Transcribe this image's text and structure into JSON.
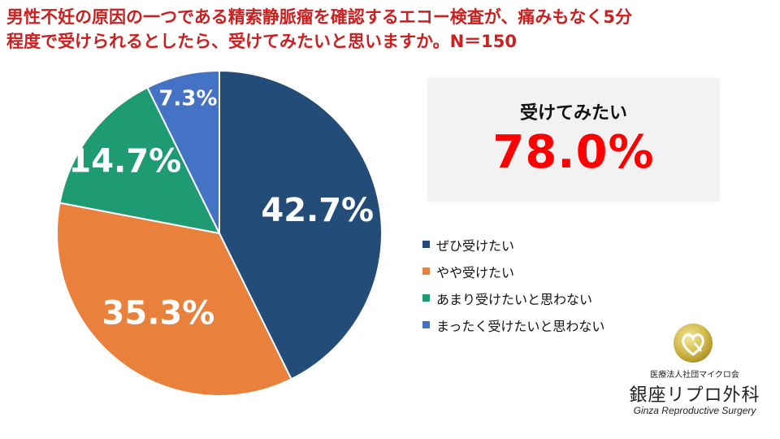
{
  "title_lines": [
    "男性不妊の原因の一つである精索静脈瘤を確認するエコー検査が、痛みもなく5分",
    "程度で受けられるとしたら、受けてみたいと思いますか。N＝150"
  ],
  "callout": {
    "label": "受けてみたい",
    "value": "78.0%"
  },
  "chart_data": {
    "type": "pie",
    "start_angle": "12 o'clock",
    "direction": "clockwise",
    "slices": [
      {
        "label": "ぜひ受けたい",
        "value": 42.7,
        "display": "42.7%",
        "color": "#234d78"
      },
      {
        "label": "やや受けたい",
        "value": 35.3,
        "display": "35.3%",
        "color": "#e9803b"
      },
      {
        "label": "あまり受けたいと思わない",
        "value": 14.7,
        "display": "14.7%",
        "color": "#1e9b73"
      },
      {
        "label": "まったく受けたいと思わない",
        "value": 7.3,
        "display": "7.3%",
        "color": "#4472c4"
      }
    ],
    "legend_position": "right"
  },
  "logo": {
    "org": "医療法人社団マイクロ会",
    "name": "銀座リプロ外科",
    "name_en": "Ginza Reproductive Surgery",
    "icon": "heart-in-circle-logo-icon"
  }
}
